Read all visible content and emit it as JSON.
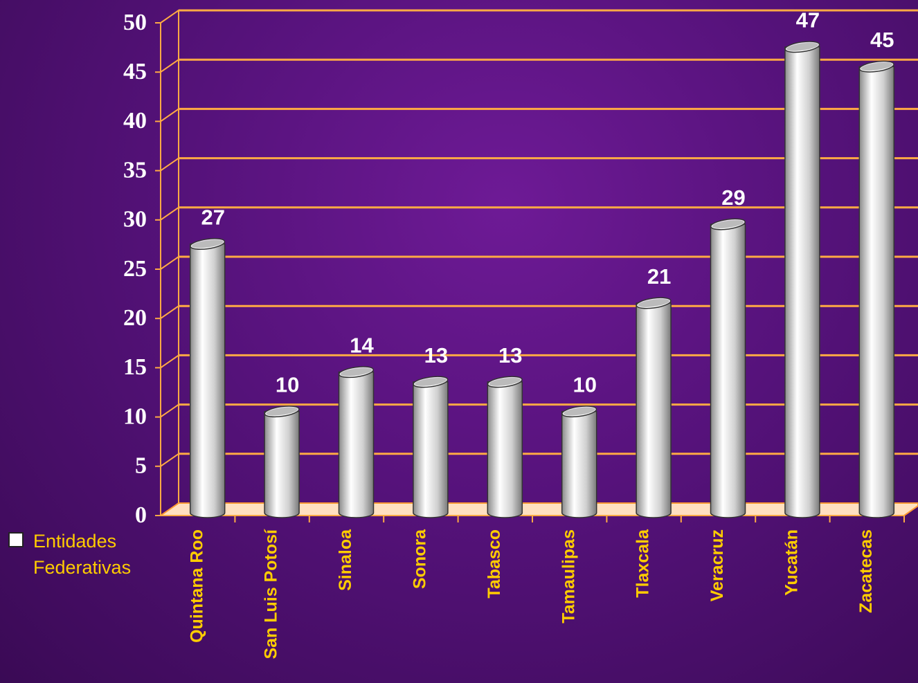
{
  "chart_data": {
    "type": "bar",
    "categories": [
      "Quintana Roo",
      "San Luis Potosí",
      "Sinaloa",
      "Sonora",
      "Tabasco",
      "Tamaulipas",
      "Tlaxcala",
      "Veracruz",
      "Yucatán",
      "Zacatecas"
    ],
    "series": [
      {
        "name": "Entidades Federativas",
        "color": "#ffffff",
        "values": [
          27,
          10,
          14,
          13,
          13,
          10,
          21,
          29,
          47,
          45
        ]
      }
    ],
    "ylim": [
      0,
      50
    ],
    "yticks": [
      0,
      5,
      10,
      15,
      20,
      25,
      30,
      35,
      40,
      45,
      50
    ],
    "grid": true,
    "legend": "left"
  }
}
